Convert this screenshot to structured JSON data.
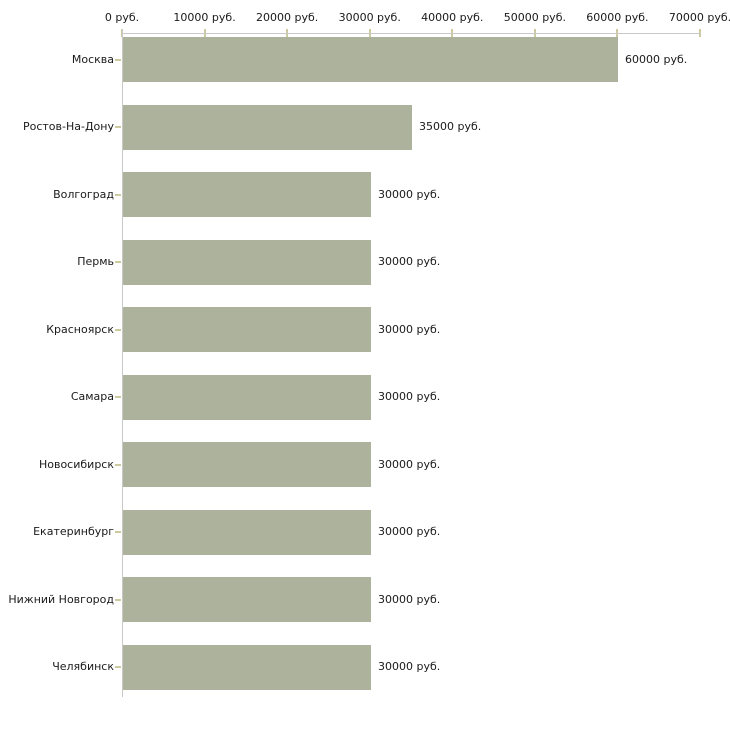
{
  "chart_data": {
    "type": "bar",
    "orientation": "horizontal",
    "title": "",
    "xlabel": "",
    "ylabel": "",
    "xlim": [
      0,
      70000
    ],
    "grid": "off",
    "legend": "none",
    "x_tick_values": [
      0,
      10000,
      20000,
      30000,
      40000,
      50000,
      60000,
      70000
    ],
    "x_tick_labels": [
      "0 руб.",
      "10000 руб.",
      "20000 руб.",
      "30000 руб.",
      "40000 руб.",
      "50000 руб.",
      "60000 руб.",
      "70000 руб."
    ],
    "categories": [
      "Москва",
      "Ростов-На-Дону",
      "Волгоград",
      "Пермь",
      "Красноярск",
      "Самара",
      "Новосибирск",
      "Екатеринбург",
      "Нижний Новгород",
      "Челябинск"
    ],
    "values": [
      60000,
      35000,
      30000,
      30000,
      30000,
      30000,
      30000,
      30000,
      30000,
      30000
    ],
    "bar_value_labels": [
      "60000 руб.",
      "35000 руб.",
      "30000 руб.",
      "30000 руб.",
      "30000 руб.",
      "30000 руб.",
      "30000 руб.",
      "30000 руб.",
      "30000 руб.",
      "30000 руб."
    ],
    "colors": {
      "bar": "#acb29b",
      "axis_line": "#c8c8c8",
      "tick_mark": "#cbcb9f",
      "text": "#1a1a1a",
      "background": "#ffffff"
    }
  }
}
